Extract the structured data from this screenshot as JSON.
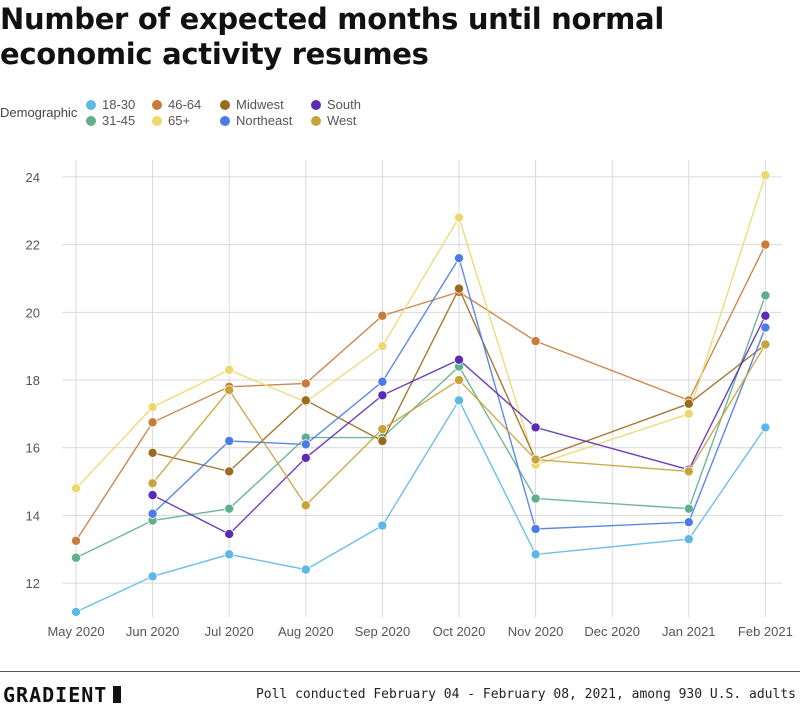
{
  "title": "Number of expected months until normal economic activity resumes",
  "legend": {
    "label": "Demographic",
    "items": [
      {
        "name": "18-30",
        "color": "#5cb8e6"
      },
      {
        "name": "31-45",
        "color": "#5fae8c"
      },
      {
        "name": "46-64",
        "color": "#c97b3c"
      },
      {
        "name": "65+",
        "color": "#ecd86b"
      },
      {
        "name": "Midwest",
        "color": "#9a6b1e"
      },
      {
        "name": "Northeast",
        "color": "#4a7be6"
      },
      {
        "name": "South",
        "color": "#5b2bb5"
      },
      {
        "name": "West",
        "color": "#c9a23a"
      }
    ]
  },
  "chart_data": {
    "type": "line",
    "title": "Number of expected months until normal economic activity resumes",
    "xlabel": "",
    "ylabel": "",
    "categories": [
      "May 2020",
      "Jun 2020",
      "Jul 2020",
      "Aug 2020",
      "Sep 2020",
      "Oct 2020",
      "Nov 2020",
      "Dec 2020",
      "Jan 2021",
      "Feb 2021"
    ],
    "ylim": [
      11,
      24.5
    ],
    "yticks": [
      12,
      14,
      16,
      18,
      20,
      22,
      24
    ],
    "grid": true,
    "legend_position": "top-left",
    "series": [
      {
        "name": "18-30",
        "color": "#5cb8e6",
        "values": [
          11.15,
          12.2,
          12.85,
          12.4,
          13.7,
          17.4,
          12.85,
          null,
          13.3,
          16.6
        ]
      },
      {
        "name": "31-45",
        "color": "#5fae8c",
        "values": [
          12.75,
          13.85,
          14.2,
          16.3,
          16.3,
          18.4,
          14.5,
          null,
          14.2,
          20.5
        ]
      },
      {
        "name": "46-64",
        "color": "#c97b3c",
        "values": [
          13.25,
          16.75,
          17.8,
          17.9,
          19.9,
          20.6,
          19.15,
          null,
          17.4,
          22.0
        ]
      },
      {
        "name": "65+",
        "color": "#ecd86b",
        "values": [
          14.8,
          17.2,
          18.3,
          17.35,
          19.0,
          22.8,
          15.5,
          null,
          17.0,
          24.05
        ]
      },
      {
        "name": "Midwest",
        "color": "#9a6b1e",
        "values": [
          null,
          15.85,
          15.3,
          17.4,
          16.2,
          20.7,
          15.65,
          null,
          17.3,
          19.05
        ]
      },
      {
        "name": "Northeast",
        "color": "#4a7be6",
        "values": [
          null,
          14.05,
          16.2,
          16.1,
          17.95,
          21.6,
          13.6,
          null,
          13.8,
          19.55
        ]
      },
      {
        "name": "South",
        "color": "#5b2bb5",
        "values": [
          null,
          14.6,
          13.45,
          15.7,
          17.55,
          18.6,
          16.6,
          null,
          15.35,
          19.9
        ]
      },
      {
        "name": "West",
        "color": "#c9a23a",
        "values": [
          null,
          14.95,
          17.7,
          14.3,
          16.55,
          18.0,
          15.65,
          null,
          15.3,
          19.05
        ]
      }
    ]
  },
  "footer": {
    "brand": "GRADIENT",
    "note": "Poll conducted February 04 - February 08, 2021, among 930 U.S. adults"
  }
}
